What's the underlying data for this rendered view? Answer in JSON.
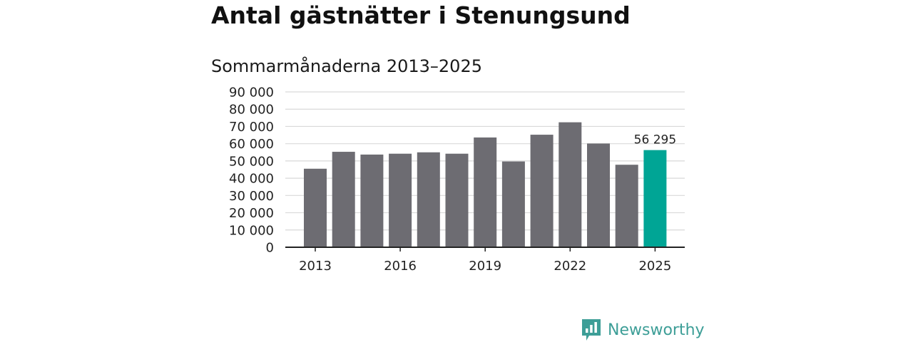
{
  "header": {
    "title": "Antal gästnätter i Stenungsund",
    "subtitle": "Sommarmånaderna 2013–2025"
  },
  "brand": {
    "name": "Newsworthy",
    "logo_icon": "bar-chart-speech-bubble-icon",
    "color": "#3d9e97"
  },
  "colors": {
    "bar": "#6d6c72",
    "highlight": "#00a595",
    "grid": "#d9d9d9",
    "axis": "#222222"
  },
  "chart_data": {
    "type": "bar",
    "title": "Antal gästnätter i Stenungsund",
    "subtitle": "Sommarmånaderna 2013–2025",
    "xlabel": "",
    "ylabel": "",
    "categories": [
      "2013",
      "2014",
      "2015",
      "2016",
      "2017",
      "2018",
      "2019",
      "2020",
      "2021",
      "2022",
      "2023",
      "2024",
      "2025"
    ],
    "values": [
      45500,
      55300,
      53700,
      54200,
      55000,
      54200,
      63600,
      49700,
      65200,
      72400,
      60100,
      47800,
      56295
    ],
    "highlight_index": 12,
    "data_labels": [
      {
        "index": 12,
        "text": "56 295"
      }
    ],
    "ylim": [
      0,
      90000
    ],
    "yticks": [
      0,
      10000,
      20000,
      30000,
      40000,
      50000,
      60000,
      70000,
      80000,
      90000
    ],
    "ytick_labels": [
      "0",
      "10 000",
      "20 000",
      "30 000",
      "40 000",
      "50 000",
      "60 000",
      "70 000",
      "80 000",
      "90 000"
    ],
    "xtick_indices": [
      0,
      3,
      6,
      9,
      12
    ],
    "xtick_labels": [
      "2013",
      "2016",
      "2019",
      "2022",
      "2025"
    ],
    "grid": true,
    "legend": "none"
  }
}
